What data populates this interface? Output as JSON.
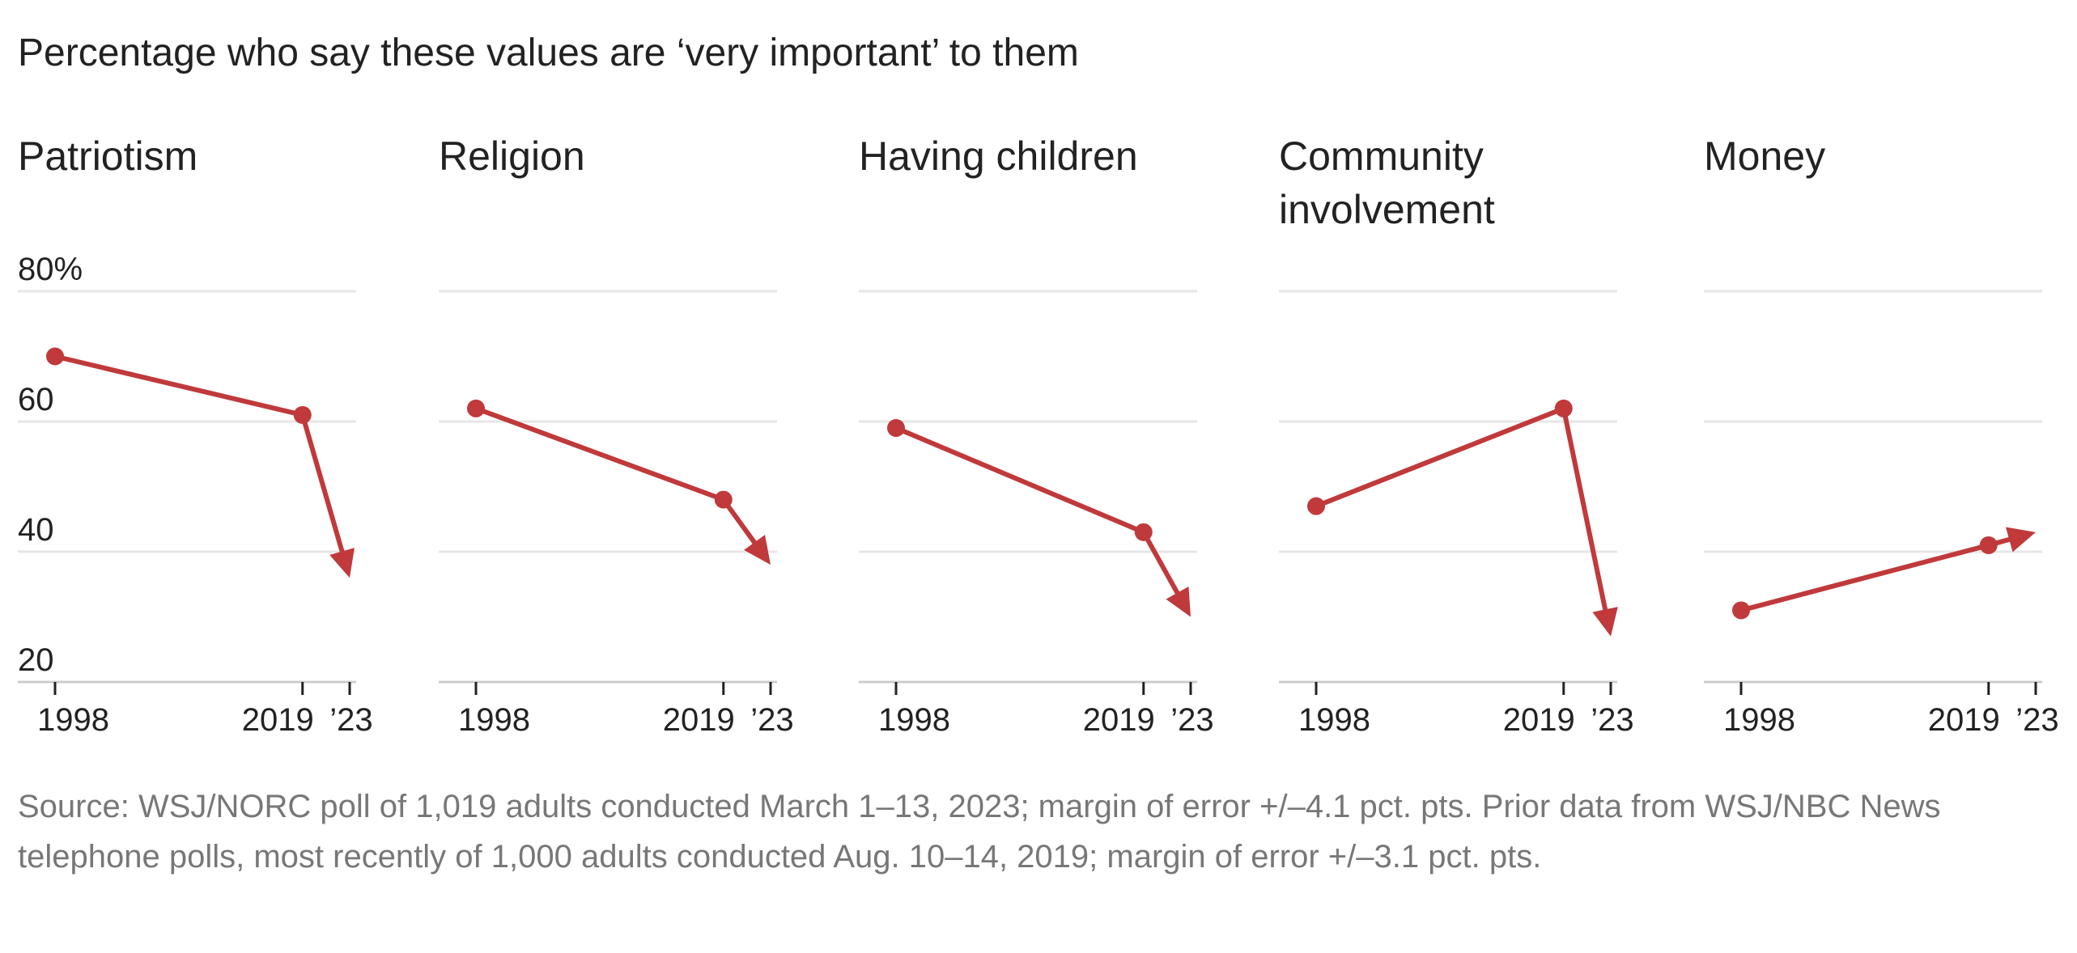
{
  "title": "Percentage who say these values are ‘very important’ to them",
  "source": "Source: WSJ/NORC poll of 1,019 adults conducted March 1–13, 2023; margin of error +/–4.1 pct. pts. Prior data from WSJ/NBC News telephone polls, most recently of 1,000 adults conducted Aug. 10–14, 2019; margin of error +/–3.1 pct. pts.",
  "colors": {
    "line": "#C0393B",
    "grid": "#e6e6e6",
    "axis": "#cccccc",
    "text": "#222222",
    "source": "#777777"
  },
  "chart_data": [
    {
      "type": "line",
      "title": "Patriotism",
      "x": [
        1998,
        2019,
        2023
      ],
      "x_tick_labels": [
        "1998",
        "2019",
        "’23"
      ],
      "y_tick_labels": [
        "80%",
        "60",
        "40",
        "20"
      ],
      "values": [
        70,
        61,
        36
      ],
      "ylim": [
        20,
        80
      ],
      "end_marker": "arrow"
    },
    {
      "type": "line",
      "title": "Religion",
      "x": [
        1998,
        2019,
        2023
      ],
      "x_tick_labels": [
        "1998",
        "2019",
        "’23"
      ],
      "values": [
        62,
        48,
        38
      ],
      "ylim": [
        20,
        80
      ],
      "end_marker": "arrow"
    },
    {
      "type": "line",
      "title": "Having children",
      "x": [
        1998,
        2019,
        2023
      ],
      "x_tick_labels": [
        "1998",
        "2019",
        "’23"
      ],
      "values": [
        59,
        43,
        30
      ],
      "ylim": [
        20,
        80
      ],
      "end_marker": "arrow"
    },
    {
      "type": "line",
      "title": "Community involvement",
      "x": [
        1998,
        2019,
        2023
      ],
      "x_tick_labels": [
        "1998",
        "2019",
        "’23"
      ],
      "values": [
        47,
        62,
        27
      ],
      "ylim": [
        20,
        80
      ],
      "end_marker": "arrow"
    },
    {
      "type": "line",
      "title": "Money",
      "x": [
        1998,
        2019,
        2023
      ],
      "x_tick_labels": [
        "1998",
        "2019",
        "’23"
      ],
      "values": [
        31,
        41,
        43
      ],
      "ylim": [
        20,
        80
      ],
      "end_marker": "arrow"
    }
  ]
}
